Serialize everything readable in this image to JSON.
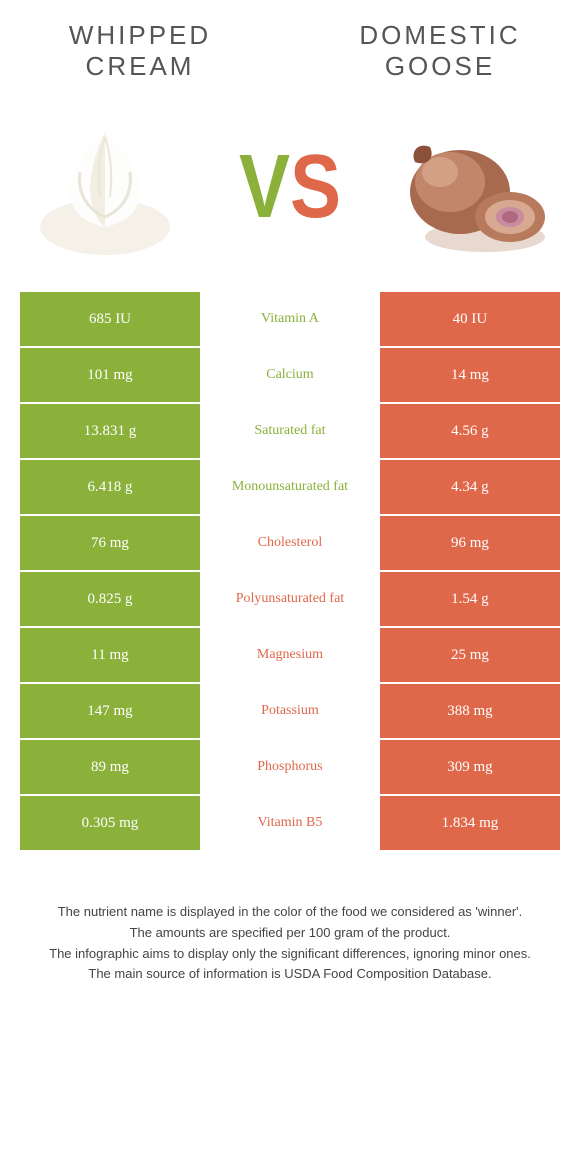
{
  "left_title": "Whipped cream",
  "right_title": "Domestic goose",
  "colors": {
    "left": "#8bb13b",
    "right": "#e0684a",
    "mid_bg": "#ffffff"
  },
  "rows": [
    {
      "name": "Vitamin A",
      "left": "685 IU",
      "right": "40 IU",
      "winner": "left"
    },
    {
      "name": "Calcium",
      "left": "101 mg",
      "right": "14 mg",
      "winner": "left"
    },
    {
      "name": "Saturated fat",
      "left": "13.831 g",
      "right": "4.56 g",
      "winner": "left"
    },
    {
      "name": "Monounsaturated fat",
      "left": "6.418 g",
      "right": "4.34 g",
      "winner": "left"
    },
    {
      "name": "Cholesterol",
      "left": "76 mg",
      "right": "96 mg",
      "winner": "right"
    },
    {
      "name": "Polyunsaturated fat",
      "left": "0.825 g",
      "right": "1.54 g",
      "winner": "right"
    },
    {
      "name": "Magnesium",
      "left": "11 mg",
      "right": "25 mg",
      "winner": "right"
    },
    {
      "name": "Potassium",
      "left": "147 mg",
      "right": "388 mg",
      "winner": "right"
    },
    {
      "name": "Phosphorus",
      "left": "89 mg",
      "right": "309 mg",
      "winner": "right"
    },
    {
      "name": "Vitamin B5",
      "left": "0.305 mg",
      "right": "1.834 mg",
      "winner": "right"
    }
  ],
  "footer": [
    "The nutrient name is displayed in the color of the food we considered as 'winner'.",
    "The amounts are specified per 100 gram of the product.",
    "The infographic aims to display only the significant differences, ignoring minor ones.",
    "The main source of information is USDA Food Composition Database."
  ]
}
